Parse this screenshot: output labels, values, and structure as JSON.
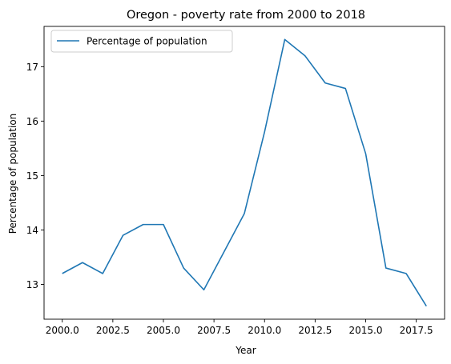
{
  "chart_data": {
    "type": "line",
    "title": "Oregon - poverty rate from 2000 to 2018",
    "xlabel": "Year",
    "ylabel": "Percentage of population",
    "xlim": [
      1999.1,
      2018.9
    ],
    "ylim": [
      12.36,
      17.74
    ],
    "x_ticks": [
      2000.0,
      2002.5,
      2005.0,
      2007.5,
      2010.0,
      2012.5,
      2015.0,
      2017.5
    ],
    "x_tick_labels": [
      "2000.0",
      "2002.5",
      "2005.0",
      "2007.5",
      "2010.0",
      "2012.5",
      "2015.0",
      "2017.5"
    ],
    "y_ticks": [
      13,
      14,
      15,
      16,
      17
    ],
    "y_tick_labels": [
      "13",
      "14",
      "15",
      "16",
      "17"
    ],
    "grid": false,
    "legend_position": "top-left",
    "series": [
      {
        "name": "Percentage of population",
        "color": "#1f77b4",
        "x": [
          2000,
          2001,
          2002,
          2003,
          2004,
          2005,
          2006,
          2007,
          2008,
          2009,
          2010,
          2011,
          2012,
          2013,
          2014,
          2015,
          2016,
          2017,
          2018
        ],
        "y": [
          13.2,
          13.4,
          13.2,
          13.9,
          14.1,
          14.1,
          13.3,
          12.9,
          13.6,
          14.3,
          15.8,
          17.5,
          17.2,
          16.7,
          16.6,
          15.4,
          13.3,
          13.2,
          12.6
        ]
      }
    ]
  }
}
